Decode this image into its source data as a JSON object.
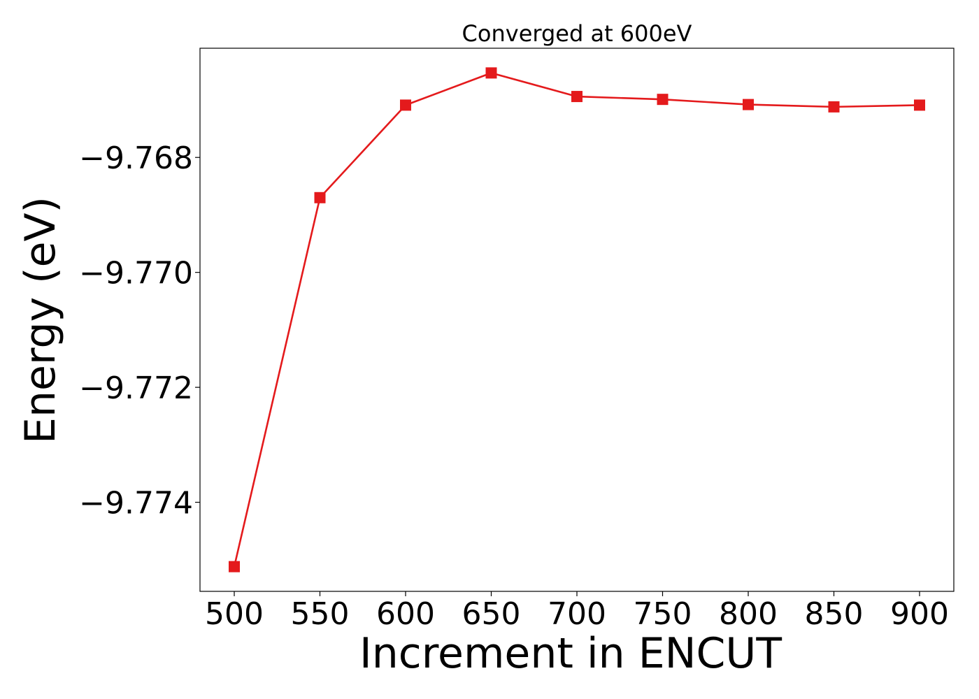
{
  "chart_data": {
    "type": "line",
    "title": "Converged at 600eV",
    "xlabel": "Increment in ENCUT",
    "ylabel": "Energy (eV)",
    "x": [
      500,
      550,
      600,
      650,
      700,
      750,
      800,
      850,
      900
    ],
    "series": [
      {
        "values": [
          -9.77512,
          -9.7687,
          -9.76709,
          -9.76653,
          -9.76694,
          -9.76699,
          -9.76708,
          -9.76712,
          -9.76709
        ],
        "color": "#e41a1c",
        "marker": "square"
      }
    ],
    "xticks": [
      500,
      550,
      600,
      650,
      700,
      750,
      800,
      850,
      900
    ],
    "xtick_labels": [
      "500",
      "550",
      "600",
      "650",
      "700",
      "750",
      "800",
      "850",
      "900"
    ],
    "yticks": [
      -9.768,
      -9.77,
      -9.772,
      -9.774
    ],
    "ytick_labels": [
      "−9.768",
      "−9.770",
      "−9.772",
      "−9.774"
    ],
    "xlim": [
      480,
      920
    ],
    "ylim": [
      -9.77555,
      -9.7661
    ],
    "grid": false,
    "legend": "none"
  }
}
